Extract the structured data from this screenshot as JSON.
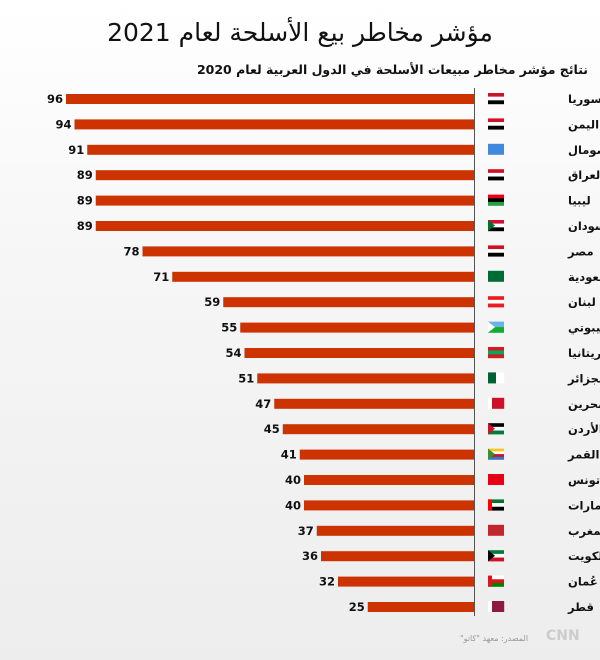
{
  "chart_data": {
    "type": "bar",
    "orientation": "horizontal",
    "title": "مؤشر مخاطر بيع الأسلحة لعام 2021",
    "subtitle": "نتائج مؤشر مخاطر مبيعات الأسلحة في الدول العربية لعام 2020",
    "categories": [
      "سوريا",
      "اليمن",
      "الصومال",
      "العراق",
      "ليبيا",
      "السودان",
      "مصر",
      "السعودية",
      "لبنان",
      "جيبوتي",
      "موريتانيا",
      "الجزائر",
      "البحرين",
      "الأردن",
      "جزر القمر",
      "تونس",
      "الإمارات",
      "المغرب",
      "الكويت",
      "عُمان",
      "قطر"
    ],
    "values": [
      96,
      94,
      91,
      89,
      89,
      89,
      78,
      71,
      59,
      55,
      54,
      51,
      47,
      45,
      41,
      40,
      40,
      37,
      36,
      32,
      25
    ],
    "bar_color": "#cc3300",
    "grid": false,
    "legend": "none"
  },
  "flags": [
    "syria",
    "yemen",
    "somalia",
    "iraq",
    "libya",
    "sudan",
    "egypt",
    "saudi",
    "lebanon",
    "djibouti",
    "mauritania",
    "algeria",
    "bahrain",
    "jordan",
    "comoros",
    "tunisia",
    "uae",
    "morocco",
    "kuwait",
    "oman",
    "qatar"
  ],
  "source": "المصدر: معهد \"كاتو\"",
  "logo": "العربية CNN"
}
